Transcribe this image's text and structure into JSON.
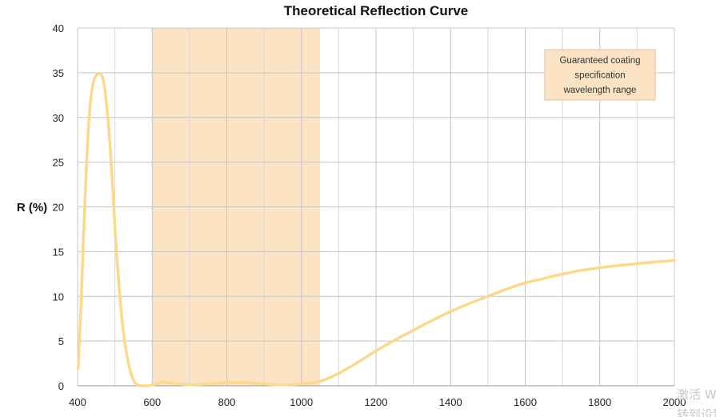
{
  "chart_data": {
    "type": "line",
    "title": "Theoretical Reflection Curve",
    "xlabel": "",
    "ylabel": "R (%)",
    "xlim": [
      400,
      2000
    ],
    "ylim": [
      0,
      40
    ],
    "xticks": [
      400,
      600,
      800,
      1000,
      1200,
      1400,
      1600,
      1800,
      2000
    ],
    "yticks": [
      0,
      5,
      10,
      15,
      20,
      25,
      30,
      35,
      40
    ],
    "grid": true,
    "shaded_region": {
      "x_start": 600,
      "x_end": 1050,
      "color": "#fce3c4"
    },
    "annotation": {
      "lines": [
        "Guaranteed coating",
        "specification",
        "wavelength range"
      ],
      "placement": "top-right"
    },
    "series": [
      {
        "color": "#fcd98a",
        "x": [
          402,
          410,
          420,
          430,
          440,
          450,
          460,
          468,
          475,
          485,
          495,
          505,
          520,
          535,
          550,
          565,
          580,
          595,
          610,
          630,
          650,
          700,
          750,
          800,
          850,
          900,
          950,
          1000,
          1050,
          1100,
          1150,
          1200,
          1250,
          1300,
          1350,
          1400,
          1450,
          1500,
          1550,
          1600,
          1650,
          1700,
          1750,
          1800,
          1850,
          1900,
          1950,
          2000
        ],
        "y": [
          2.0,
          10.0,
          21.0,
          29.5,
          33.5,
          34.7,
          34.9,
          34.3,
          32.5,
          28.0,
          21.5,
          14.5,
          7.0,
          2.8,
          0.6,
          0.05,
          0.0,
          0.05,
          0.2,
          0.4,
          0.3,
          0.1,
          0.2,
          0.35,
          0.35,
          0.2,
          0.1,
          0.2,
          0.5,
          1.4,
          2.6,
          3.9,
          5.1,
          6.2,
          7.3,
          8.3,
          9.2,
          10.0,
          10.8,
          11.5,
          12.0,
          12.5,
          12.9,
          13.2,
          13.45,
          13.65,
          13.85,
          14.0
        ]
      }
    ]
  },
  "watermark": {
    "line1": "激活 W",
    "line2": "转到设置"
  }
}
